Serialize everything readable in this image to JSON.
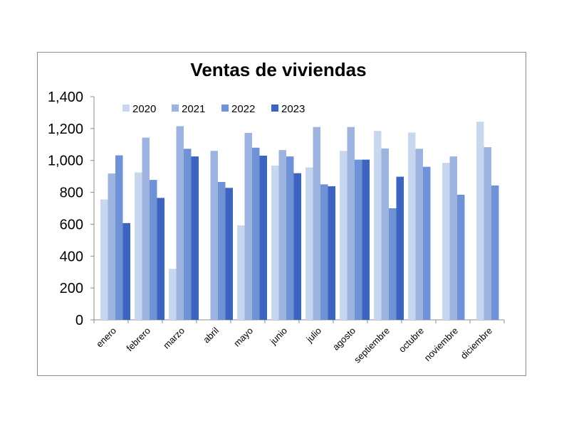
{
  "chart_data": {
    "type": "bar",
    "title": "Ventas de viviendas",
    "xlabel": "",
    "ylabel": "",
    "ylim": [
      0,
      1400
    ],
    "yticks": [
      "0",
      "200",
      "400",
      "600",
      "800",
      "1,000",
      "1,200",
      "1,400"
    ],
    "ytick_values": [
      0,
      200,
      400,
      600,
      800,
      1000,
      1200,
      1400
    ],
    "grid": false,
    "legend_position": "top",
    "categories": [
      "enero",
      "febrero",
      "marzo",
      "abril",
      "mayo",
      "junio",
      "julio",
      "agosto",
      "septiembre",
      "octubre",
      "noviembre",
      "diciembre"
    ],
    "series": [
      {
        "name": "2020",
        "color": "#c9d7ee",
        "values": [
          755,
          925,
          320,
          null,
          593,
          968,
          956,
          1060,
          1185,
          1175,
          985,
          1243
        ]
      },
      {
        "name": "2021",
        "color": "#9db3e0",
        "values": [
          918,
          1143,
          1215,
          1060,
          1173,
          1065,
          1210,
          1210,
          1075,
          1073,
          1025,
          1083
        ]
      },
      {
        "name": "2022",
        "color": "#6f91d6",
        "values": [
          1032,
          878,
          1073,
          865,
          1080,
          1025,
          850,
          1005,
          700,
          960,
          785,
          843
        ]
      },
      {
        "name": "2023",
        "color": "#3b65c0",
        "values": [
          607,
          765,
          1025,
          828,
          1030,
          920,
          838,
          1005,
          898,
          null,
          null,
          null
        ]
      }
    ]
  }
}
